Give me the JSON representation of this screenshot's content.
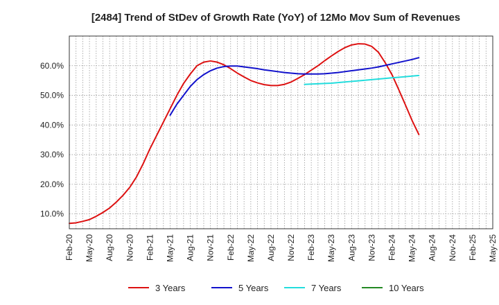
{
  "chart_data": {
    "type": "line",
    "title": "[2484]  Trend of StDev of Growth Rate (YoY) of 12Mo Mov Sum of Revenues",
    "xlabel": "",
    "ylabel": "",
    "ylim": [
      5,
      70
    ],
    "grid": true,
    "legend_position": "bottom",
    "y_ticks": [
      {
        "value": 10,
        "label": "10.0%"
      },
      {
        "value": 20,
        "label": "20.0%"
      },
      {
        "value": 30,
        "label": "30.0%"
      },
      {
        "value": 40,
        "label": "40.0%"
      },
      {
        "value": 50,
        "label": "50.0%"
      },
      {
        "value": 60,
        "label": "60.0%"
      }
    ],
    "x_ticks": [
      "Feb-20",
      "May-20",
      "Aug-20",
      "Nov-20",
      "Feb-21",
      "May-21",
      "Aug-21",
      "Nov-21",
      "Feb-22",
      "May-22",
      "Aug-22",
      "Nov-22",
      "Feb-23",
      "May-23",
      "Aug-23",
      "Nov-23",
      "Feb-24",
      "May-24",
      "Aug-24",
      "Nov-24",
      "Feb-25",
      "May-25"
    ],
    "series": [
      {
        "name": "3 Years",
        "color": "#dd1111",
        "start_index": 0,
        "values": [
          6.8,
          7.0,
          7.5,
          8.1,
          9.2,
          10.5,
          12.0,
          14.0,
          16.3,
          19.0,
          22.5,
          27.0,
          32.0,
          36.5,
          41.0,
          45.5,
          50.0,
          54.0,
          57.2,
          60.0,
          61.2,
          61.6,
          61.2,
          60.3,
          59.0,
          57.5,
          56.2,
          55.0,
          54.2,
          53.6,
          53.3,
          53.3,
          53.7,
          54.5,
          55.7,
          57.0,
          58.5,
          60.0,
          61.7,
          63.3,
          64.8,
          66.1,
          67.0,
          67.4,
          67.3,
          66.5,
          64.5,
          61.0,
          57.0,
          52.0,
          46.8,
          41.5,
          36.8
        ]
      },
      {
        "name": "5 Years",
        "color": "#1111cc",
        "start_index": 15,
        "values": [
          43.3,
          47.0,
          50.0,
          53.0,
          55.3,
          57.0,
          58.3,
          59.2,
          59.7,
          59.9,
          59.9,
          59.6,
          59.3,
          59.0,
          58.6,
          58.3,
          58.0,
          57.7,
          57.5,
          57.3,
          57.2,
          57.2,
          57.2,
          57.3,
          57.5,
          57.7,
          58.0,
          58.3,
          58.6,
          58.9,
          59.2,
          59.6,
          60.1,
          60.6,
          61.1,
          61.6,
          62.1,
          62.7
        ]
      },
      {
        "name": "7 Years",
        "color": "#22dddd",
        "start_index": 35,
        "values": [
          53.7,
          53.8,
          53.9,
          54.0,
          54.1,
          54.3,
          54.5,
          54.7,
          54.9,
          55.1,
          55.3,
          55.5,
          55.7,
          55.9,
          56.1,
          56.3,
          56.5,
          56.7
        ]
      },
      {
        "name": "10 Years",
        "color": "#228822",
        "start_index": 0,
        "values": []
      }
    ]
  }
}
